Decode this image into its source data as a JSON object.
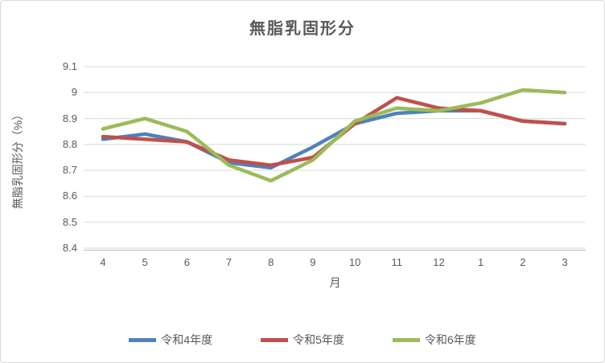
{
  "chart_data": {
    "type": "line",
    "title": "無脂乳固形分",
    "xlabel": "月",
    "ylabel": "無脂乳固形分（%）",
    "categories": [
      "4",
      "5",
      "6",
      "7",
      "8",
      "9",
      "10",
      "11",
      "12",
      "1",
      "2",
      "3"
    ],
    "yticks": [
      "9.1",
      "9",
      "8.9",
      "8.8",
      "8.7",
      "8.6",
      "8.5",
      "8.4"
    ],
    "ylim": [
      8.4,
      9.1
    ],
    "grid": "horizontal",
    "legend_position": "bottom",
    "gridline_color": "#d9d9d9",
    "axis_line_color": "#bfbfbf",
    "series": [
      {
        "name": "令和4年度",
        "color": "#4f81bd",
        "values": [
          8.82,
          8.84,
          8.81,
          8.73,
          8.71,
          8.79,
          8.88,
          8.92,
          8.93,
          8.93,
          8.89,
          8.88
        ]
      },
      {
        "name": "令和5年度",
        "color": "#c0504d",
        "values": [
          8.83,
          8.82,
          8.81,
          8.74,
          8.72,
          8.75,
          8.88,
          8.98,
          8.94,
          8.93,
          8.89,
          8.88
        ]
      },
      {
        "name": "令和6年度",
        "color": "#9bbb59",
        "values": [
          8.86,
          8.9,
          8.85,
          8.72,
          8.66,
          8.74,
          8.89,
          8.94,
          8.93,
          8.96,
          9.01,
          9.0
        ]
      }
    ]
  }
}
